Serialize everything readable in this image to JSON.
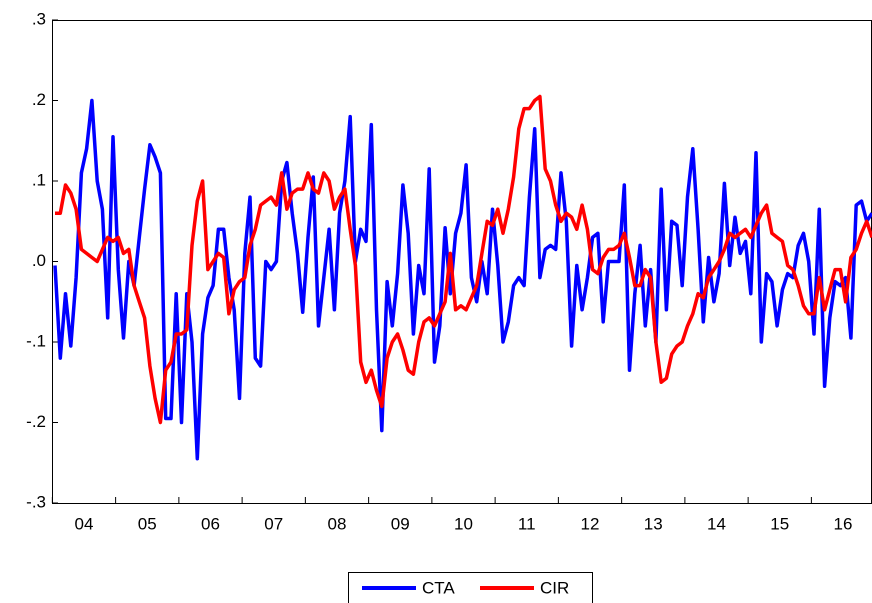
{
  "chart_data": {
    "type": "line",
    "categories": [
      null,
      null,
      null,
      null,
      null,
      null,
      "04",
      null,
      null,
      null,
      null,
      null,
      null,
      null,
      null,
      null,
      null,
      null,
      "05",
      null,
      null,
      null,
      null,
      null,
      null,
      null,
      null,
      null,
      null,
      null,
      "06",
      null,
      null,
      null,
      null,
      null,
      null,
      null,
      null,
      null,
      null,
      null,
      "07",
      null,
      null,
      null,
      null,
      null,
      null,
      null,
      null,
      null,
      null,
      null,
      "08",
      null,
      null,
      null,
      null,
      null,
      null,
      null,
      null,
      null,
      null,
      null,
      "09",
      null,
      null,
      null,
      null,
      null,
      null,
      null,
      null,
      null,
      null,
      null,
      "10",
      null,
      null,
      null,
      null,
      null,
      null,
      null,
      null,
      null,
      null,
      null,
      "11",
      null,
      null,
      null,
      null,
      null,
      null,
      null,
      null,
      null,
      null,
      null,
      "12",
      null,
      null,
      null,
      null,
      null,
      null,
      null,
      null,
      null,
      null,
      null,
      "13",
      null,
      null,
      null,
      null,
      null,
      null,
      null,
      null,
      null,
      null,
      null,
      "14",
      null,
      null,
      null,
      null,
      null,
      null,
      null,
      null,
      null,
      null,
      null,
      "15",
      null,
      null,
      null,
      null,
      null,
      null,
      null,
      null,
      null,
      null,
      null,
      "16",
      null,
      null,
      null,
      null,
      null
    ],
    "series": [
      {
        "name": "CTA",
        "color": "#0000ff",
        "values": [
          -0.005,
          -0.12,
          -0.04,
          -0.105,
          -0.02,
          0.11,
          0.14,
          0.2,
          0.1,
          0.065,
          -0.07,
          0.155,
          -0.01,
          -0.095,
          0.0,
          -0.03,
          0.03,
          0.09,
          0.145,
          0.13,
          0.11,
          -0.195,
          -0.195,
          -0.04,
          -0.2,
          -0.04,
          -0.1,
          -0.245,
          -0.09,
          -0.045,
          -0.03,
          0.04,
          0.04,
          -0.02,
          -0.06,
          -0.17,
          0.01,
          0.08,
          -0.12,
          -0.13,
          0.0,
          -0.01,
          0.0,
          0.1,
          0.123,
          0.06,
          0.01,
          -0.063,
          0.03,
          0.105,
          -0.08,
          -0.02,
          0.04,
          -0.06,
          0.06,
          0.1,
          0.18,
          0.0,
          0.04,
          0.025,
          0.17,
          -0.06,
          -0.21,
          -0.025,
          -0.08,
          -0.015,
          0.095,
          0.035,
          -0.09,
          -0.005,
          -0.04,
          0.115,
          -0.125,
          -0.08,
          0.042,
          -0.04,
          0.035,
          0.06,
          0.12,
          -0.02,
          -0.05,
          0.0,
          -0.04,
          0.065,
          -0.005,
          -0.1,
          -0.075,
          -0.03,
          -0.02,
          -0.03,
          0.08,
          0.165,
          -0.02,
          0.015,
          0.02,
          0.015,
          0.11,
          0.05,
          -0.105,
          -0.005,
          -0.06,
          -0.02,
          0.03,
          0.035,
          -0.075,
          0.0,
          0.0,
          0.0,
          0.095,
          -0.135,
          -0.04,
          0.02,
          -0.08,
          -0.01,
          -0.1,
          0.09,
          -0.06,
          0.05,
          0.045,
          -0.03,
          0.08,
          0.14,
          0.04,
          -0.075,
          0.005,
          -0.05,
          -0.015,
          0.097,
          -0.005,
          0.055,
          0.01,
          0.025,
          -0.04,
          0.135,
          -0.1,
          -0.015,
          -0.025,
          -0.08,
          -0.035,
          -0.015,
          -0.02,
          0.02,
          0.035,
          0.0,
          -0.09,
          0.065,
          -0.155,
          -0.07,
          -0.025,
          -0.03,
          -0.02,
          -0.095,
          0.07,
          0.075,
          0.05,
          0.06
        ]
      },
      {
        "name": "CIR",
        "color": "#ff0000",
        "values": [
          0.06,
          0.06,
          0.095,
          0.085,
          0.065,
          0.015,
          0.01,
          0.005,
          0.0,
          0.015,
          0.03,
          0.025,
          0.03,
          0.01,
          0.015,
          -0.03,
          -0.05,
          -0.07,
          -0.13,
          -0.17,
          -0.2,
          -0.135,
          -0.125,
          -0.09,
          -0.09,
          -0.085,
          0.02,
          0.075,
          0.1,
          -0.01,
          0.0,
          0.01,
          0.005,
          -0.065,
          -0.035,
          -0.025,
          -0.02,
          0.02,
          0.04,
          0.07,
          0.075,
          0.08,
          0.07,
          0.11,
          0.065,
          0.085,
          0.09,
          0.09,
          0.11,
          0.09,
          0.085,
          0.11,
          0.1,
          0.065,
          0.08,
          0.09,
          0.04,
          -0.005,
          -0.125,
          -0.15,
          -0.135,
          -0.16,
          -0.18,
          -0.12,
          -0.1,
          -0.09,
          -0.11,
          -0.135,
          -0.14,
          -0.1,
          -0.075,
          -0.07,
          -0.08,
          -0.065,
          -0.05,
          0.01,
          -0.06,
          -0.055,
          -0.06,
          -0.045,
          -0.03,
          0.01,
          0.05,
          0.045,
          0.065,
          0.035,
          0.065,
          0.105,
          0.165,
          0.19,
          0.19,
          0.2,
          0.205,
          0.115,
          0.1,
          0.07,
          0.05,
          0.06,
          0.055,
          0.04,
          0.07,
          0.04,
          -0.01,
          -0.015,
          0.005,
          0.015,
          0.015,
          0.02,
          0.035,
          0.005,
          -0.03,
          -0.03,
          -0.01,
          -0.02,
          -0.1,
          -0.15,
          -0.145,
          -0.115,
          -0.105,
          -0.1,
          -0.08,
          -0.065,
          -0.04,
          -0.045,
          -0.02,
          -0.01,
          0.0,
          0.015,
          0.035,
          0.03,
          0.035,
          0.04,
          0.03,
          0.045,
          0.06,
          0.07,
          0.035,
          0.03,
          0.025,
          -0.005,
          -0.01,
          -0.03,
          -0.055,
          -0.065,
          -0.065,
          -0.02,
          -0.06,
          -0.035,
          -0.01,
          -0.01,
          -0.05,
          0.005,
          0.015,
          0.035,
          0.05,
          0.03
        ]
      }
    ],
    "ylim": [
      -0.3,
      0.3
    ],
    "yticks": [
      {
        "value": -0.3,
        "label": "-.3"
      },
      {
        "value": -0.2,
        "label": "-.2"
      },
      {
        "value": -0.1,
        "label": "-.1"
      },
      {
        "value": 0,
        "label": ".0"
      },
      {
        "value": 0.1,
        "label": ".1"
      },
      {
        "value": 0.2,
        "label": ".2"
      },
      {
        "value": 0.3,
        "label": ".3"
      }
    ],
    "grid": false
  }
}
